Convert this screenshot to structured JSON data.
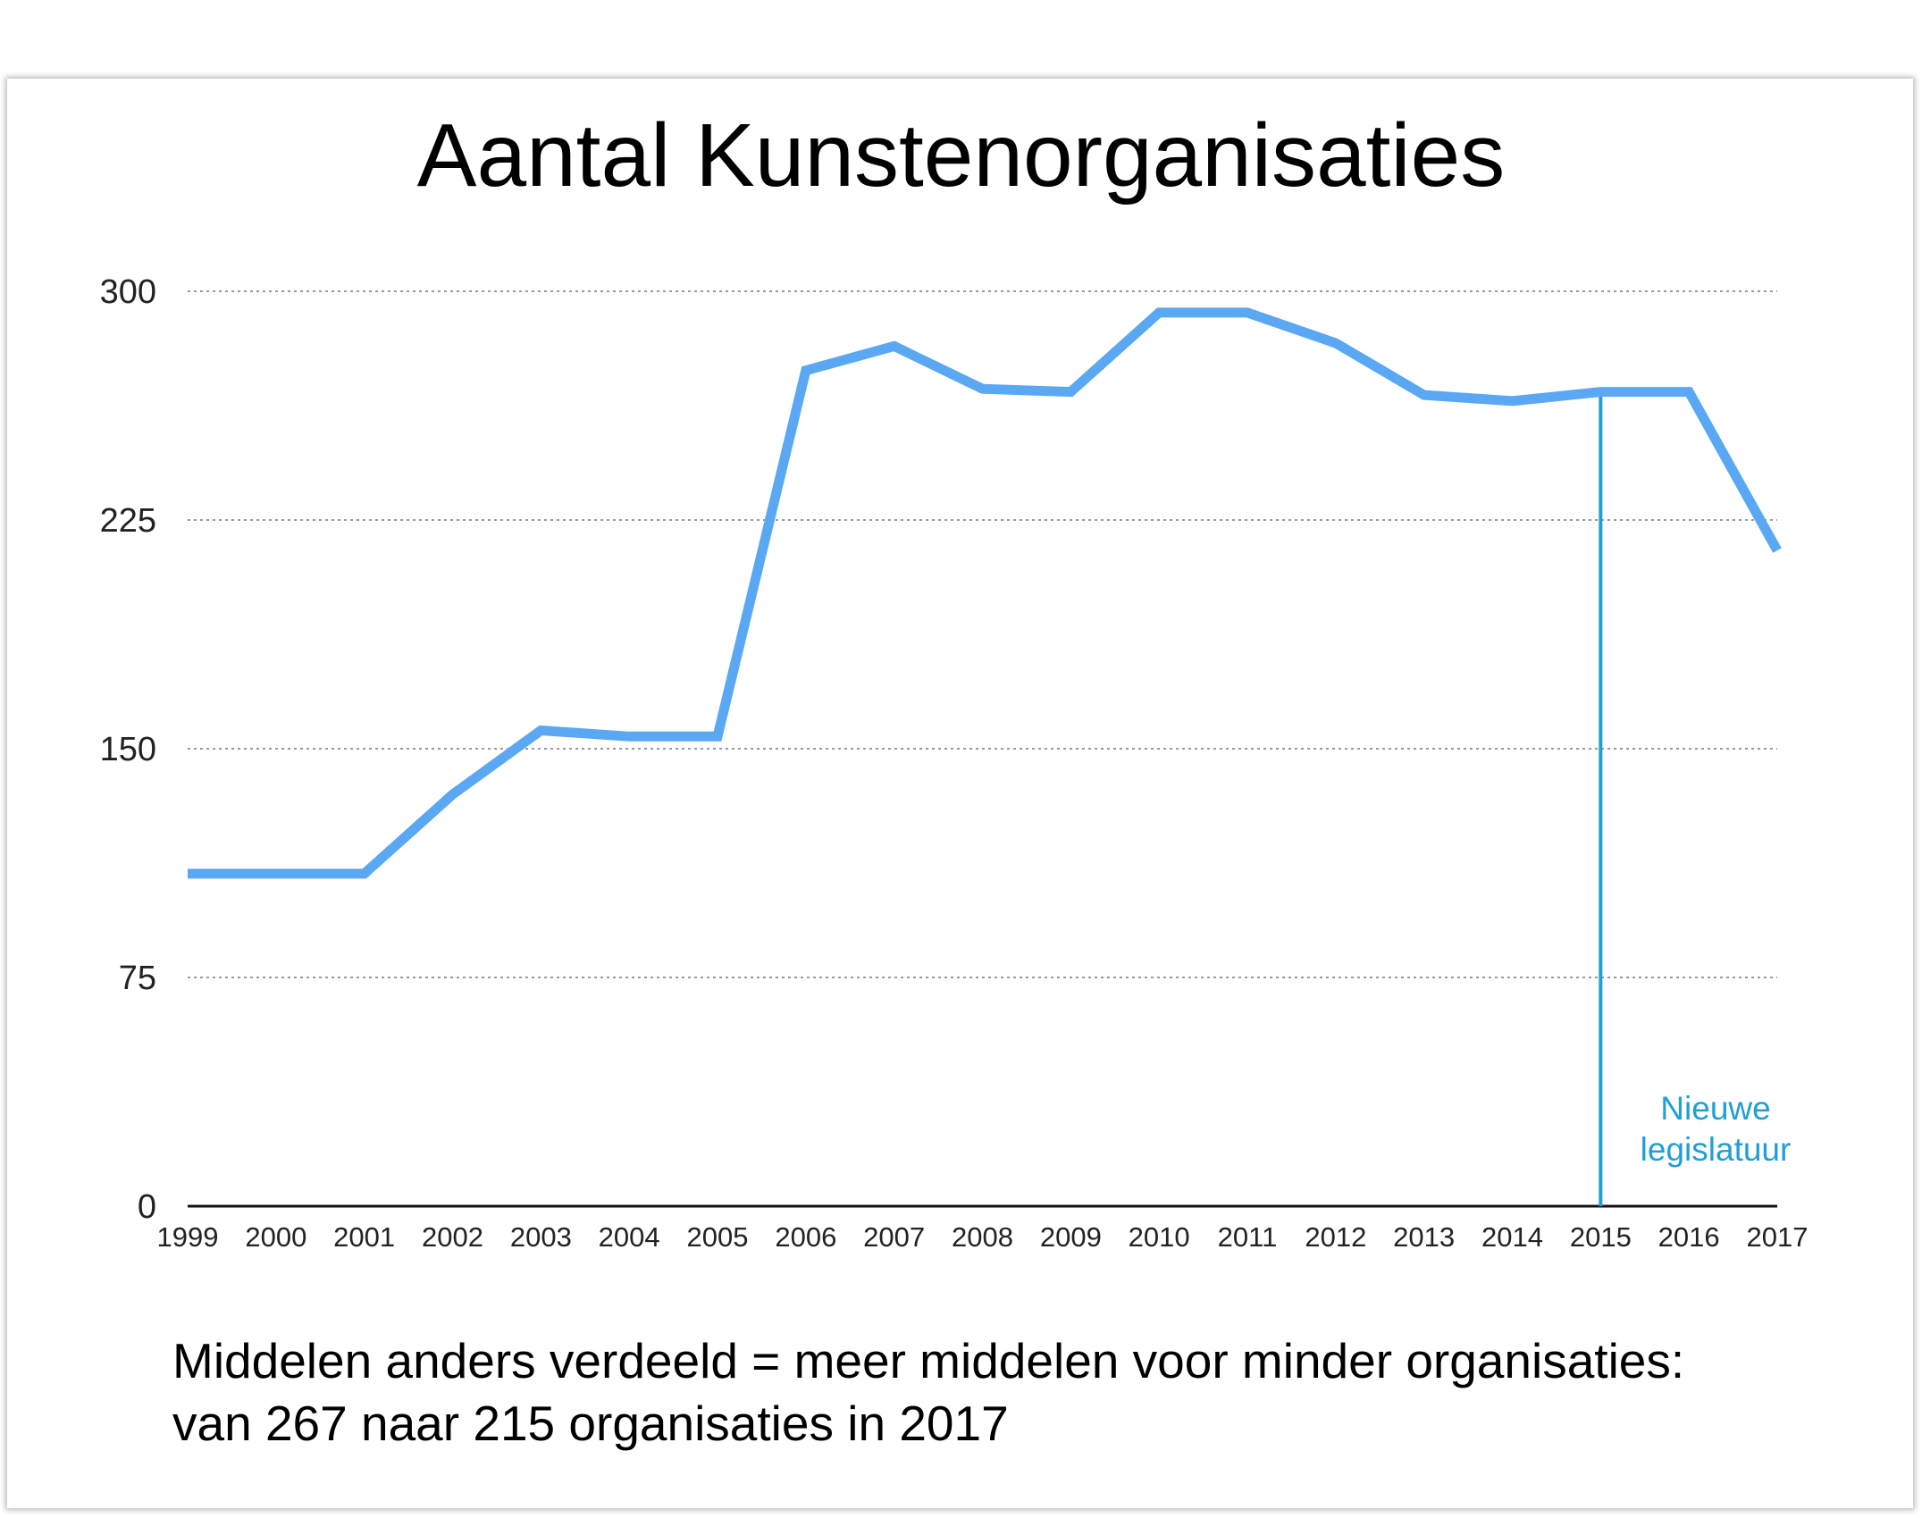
{
  "chart_data": {
    "type": "line",
    "title": "Aantal Kunstenorganisaties",
    "xlabel": "",
    "ylabel": "",
    "x": [
      "1999",
      "2000",
      "2001",
      "2002",
      "2003",
      "2004",
      "2005",
      "2006",
      "2007",
      "2008",
      "2009",
      "2010",
      "2011",
      "2012",
      "2013",
      "2014",
      "2015",
      "2016",
      "2017"
    ],
    "series": [
      {
        "values": [
          109,
          109,
          109,
          135,
          156,
          154,
          154,
          274,
          282,
          268,
          267,
          293,
          293,
          283,
          266,
          264,
          267,
          267,
          215
        ]
      }
    ],
    "ylim": [
      0,
      300
    ],
    "yticks": [
      "0",
      "75",
      "150",
      "225",
      "300"
    ],
    "grid": "horizontal dotted",
    "line_color": "#5aa8f3",
    "marker": {
      "x": "2015",
      "label_lines": [
        "Nieuwe",
        "legislatuur"
      ],
      "color": "#1f9fd6"
    }
  },
  "caption": {
    "line1": "Middelen anders verdeeld = meer middelen voor minder organisaties:",
    "line2": "van 267 naar 215 organisaties in 2017"
  }
}
